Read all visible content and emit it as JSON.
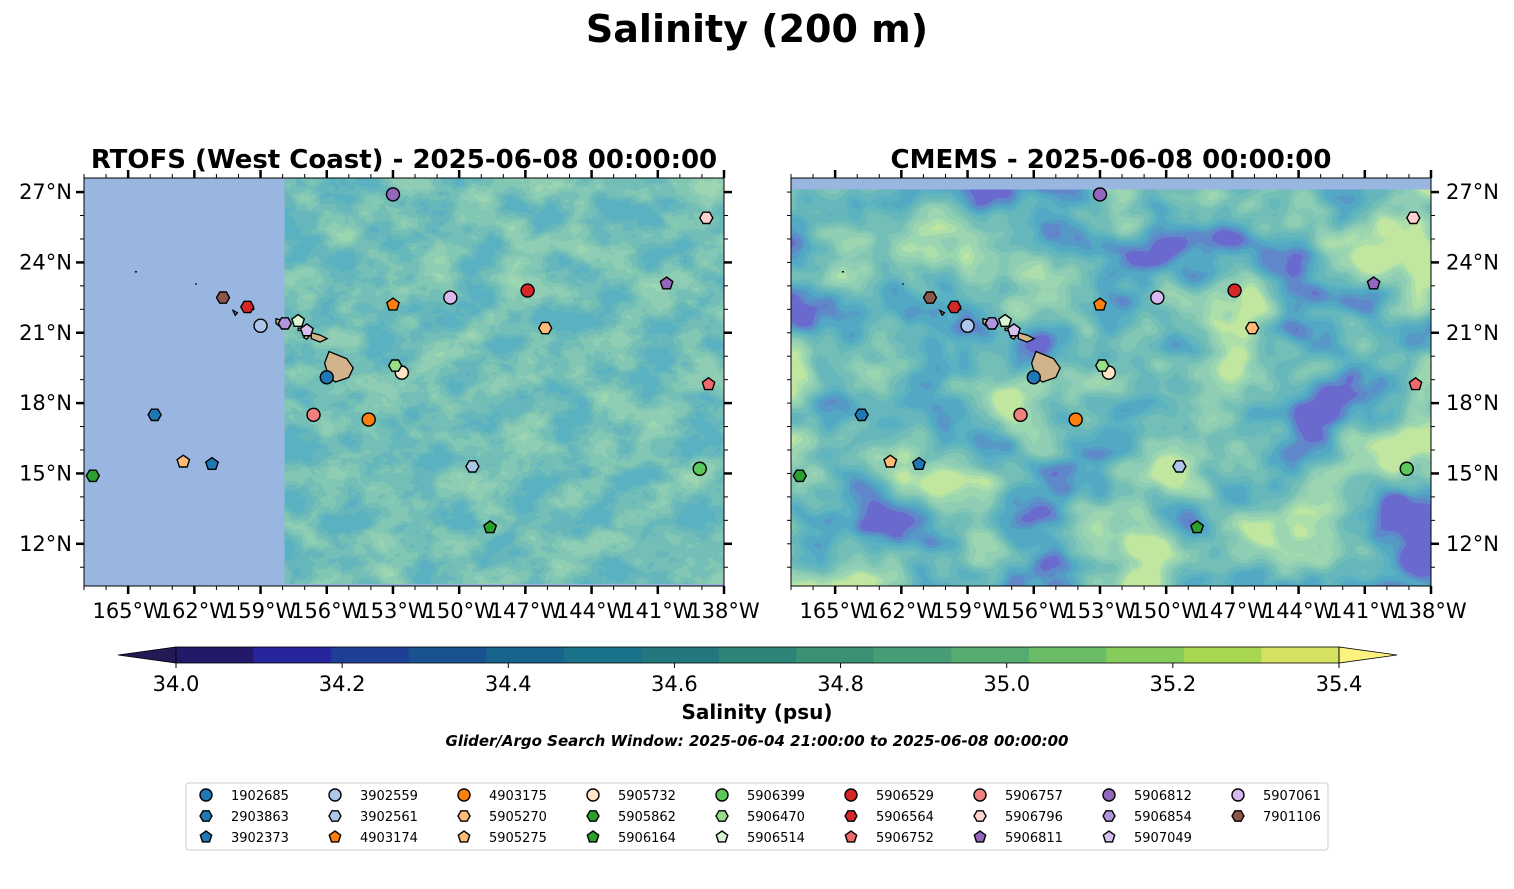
{
  "figure": {
    "suptitle": "Salinity (200 m)",
    "window_note": "Glider/Argo Search Window: 2025-06-04 21:00:00 to 2025-06-08 00:00:00"
  },
  "colorbar": {
    "label": "Salinity (psu)",
    "min": 34.0,
    "max": 35.4,
    "levels": [
      34.0,
      34.1,
      34.2,
      34.3,
      34.4,
      34.5,
      34.6,
      34.7,
      34.8,
      34.9,
      35.0,
      35.1,
      35.2,
      35.3,
      35.4
    ],
    "colors": [
      "#23196b",
      "#26259c",
      "#1e3f96",
      "#195191",
      "#17658c",
      "#1a718a",
      "#23787f",
      "#2d8479",
      "#3a9175",
      "#479d76",
      "#56ac70",
      "#6abd66",
      "#87cb5a",
      "#a9d64f",
      "#d4e163"
    ],
    "under_color": "#221a55",
    "over_color": "#fbf280",
    "extend": "both",
    "ticks": [
      "34.0",
      "34.2",
      "34.4",
      "34.6",
      "34.8",
      "35.0",
      "35.2",
      "35.4"
    ]
  },
  "colors": {
    "land": "#d2b48c",
    "masked_ocean": "#98b6e0"
  },
  "chart_data": [
    {
      "type": "heatmap",
      "title": "RTOFS (West Coast) - 2025-06-08 00:00:00",
      "model": "RTOFS",
      "xlim": [
        -167,
        -138
      ],
      "ylim": [
        10.2,
        27.6
      ],
      "xticks": [
        "165°W",
        "162°W",
        "159°W",
        "156°W",
        "153°W",
        "150°W",
        "147°W",
        "144°W",
        "141°W",
        "138°W"
      ],
      "yticks": [
        "12°N",
        "15°N",
        "18°N",
        "21°N",
        "24°N",
        "27°N"
      ],
      "ytick_side": "right",
      "model_domain_lon_min": -157.9,
      "model_valid_top_lat": 27.6,
      "model_valid_bottom_lat": 10.3,
      "field_salinity_range": [
        34.5,
        35.0
      ]
    },
    {
      "type": "heatmap",
      "title": "CMEMS - 2025-06-08 00:00:00",
      "model": "CMEMS",
      "xlim": [
        -167,
        -138
      ],
      "ylim": [
        10.2,
        27.6
      ],
      "xticks": [
        "165°W",
        "162°W",
        "159°W",
        "156°W",
        "153°W",
        "150°W",
        "147°W",
        "144°W",
        "141°W",
        "138°W"
      ],
      "yticks": [
        "12°N",
        "15°N",
        "18°N",
        "21°N",
        "24°N",
        "27°N"
      ],
      "ytick_side": "right",
      "model_valid_top_lat": 27.1,
      "field_salinity_range": [
        34.1,
        35.3
      ]
    }
  ],
  "floats": [
    {
      "id": "1902685",
      "marker": "circle",
      "color": "#1f77b4",
      "lon": -156.0,
      "lat": 19.1
    },
    {
      "id": "2903863",
      "marker": "hexagon",
      "color": "#1f77b4",
      "lon": -163.8,
      "lat": 17.5
    },
    {
      "id": "3902373",
      "marker": "pentagon",
      "color": "#1f77b4",
      "lon": -161.2,
      "lat": 15.4
    },
    {
      "id": "3902559",
      "marker": "circle",
      "color": "#aec7e8",
      "lon": -159.0,
      "lat": 21.3
    },
    {
      "id": "3902561",
      "marker": "hexagon",
      "color": "#aec7e8",
      "lon": -149.4,
      "lat": 15.3
    },
    {
      "id": "4903174",
      "marker": "pentagon",
      "color": "#ff7f0e",
      "lon": -153.0,
      "lat": 22.2
    },
    {
      "id": "4903175",
      "marker": "circle",
      "color": "#ff7f0e",
      "lon": -154.1,
      "lat": 17.3
    },
    {
      "id": "5905270",
      "marker": "hexagon",
      "color": "#ffbb78",
      "lon": -146.1,
      "lat": 21.2
    },
    {
      "id": "5905275",
      "marker": "pentagon",
      "color": "#ffbb78",
      "lon": -162.5,
      "lat": 15.5
    },
    {
      "id": "5905732",
      "marker": "circle",
      "color": "#ffe5c6",
      "lon": -152.6,
      "lat": 19.3
    },
    {
      "id": "5905862",
      "marker": "hexagon",
      "color": "#2ca02c",
      "lon": -166.6,
      "lat": 14.9
    },
    {
      "id": "5906164",
      "marker": "pentagon",
      "color": "#2ca02c",
      "lon": -148.6,
      "lat": 12.7
    },
    {
      "id": "5906399",
      "marker": "circle",
      "color": "#5cc85c",
      "lon": -139.1,
      "lat": 15.2
    },
    {
      "id": "5906470",
      "marker": "hexagon",
      "color": "#98df8a",
      "lon": -152.9,
      "lat": 19.6
    },
    {
      "id": "5906514",
      "marker": "pentagon",
      "color": "#d6f5d0",
      "lon": -157.3,
      "lat": 21.5
    },
    {
      "id": "5906529",
      "marker": "circle",
      "color": "#d62728",
      "lon": -146.9,
      "lat": 22.8
    },
    {
      "id": "5906564",
      "marker": "hexagon",
      "color": "#d62728",
      "lon": -159.6,
      "lat": 22.1
    },
    {
      "id": "5906752",
      "marker": "pentagon",
      "color": "#ee6a6a",
      "lon": -138.7,
      "lat": 18.8
    },
    {
      "id": "5906757",
      "marker": "circle",
      "color": "#f08080",
      "lon": -156.6,
      "lat": 17.5
    },
    {
      "id": "5906796",
      "marker": "hexagon",
      "color": "#ffd1d1",
      "lon": -138.8,
      "lat": 25.9
    },
    {
      "id": "5906811",
      "marker": "pentagon",
      "color": "#9467bd",
      "lon": -140.6,
      "lat": 23.1
    },
    {
      "id": "5906812",
      "marker": "circle",
      "color": "#9467bd",
      "lon": -153.0,
      "lat": 26.9
    },
    {
      "id": "5906854",
      "marker": "hexagon",
      "color": "#b294dc",
      "lon": -157.9,
      "lat": 21.4
    },
    {
      "id": "5907049",
      "marker": "pentagon",
      "color": "#d7c0f2",
      "lon": -156.9,
      "lat": 21.1
    },
    {
      "id": "5907061",
      "marker": "circle",
      "color": "#d9b8f0",
      "lon": -150.4,
      "lat": 22.5
    },
    {
      "id": "7901106",
      "marker": "hexagon",
      "color": "#8c564b",
      "lon": -160.7,
      "lat": 22.5
    }
  ]
}
